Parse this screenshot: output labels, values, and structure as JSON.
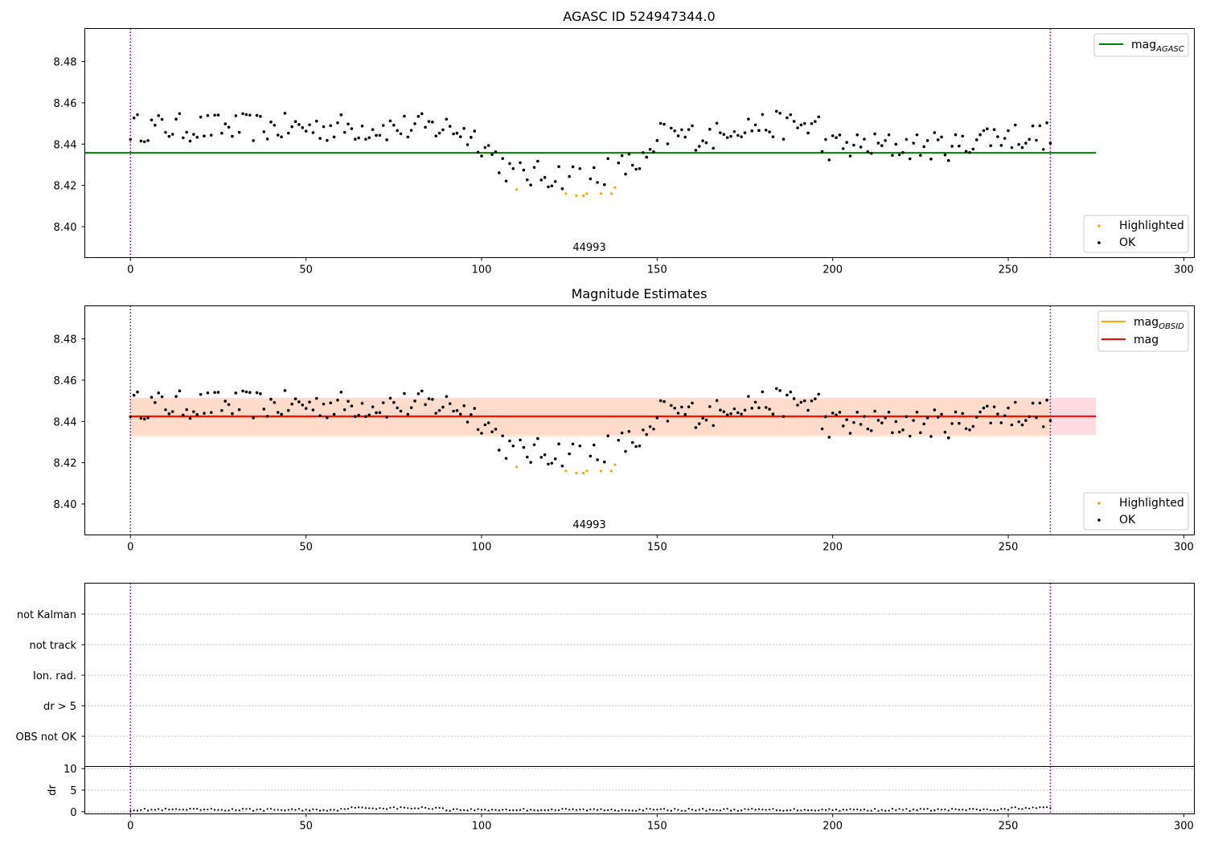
{
  "chart_data": [
    {
      "type": "scatter",
      "title": "AGASC ID 524947344.0",
      "xlim": [
        -13,
        303
      ],
      "ylim": [
        8.385,
        8.496
      ],
      "xticks": [
        0,
        50,
        100,
        150,
        200,
        250,
        300
      ],
      "yticks": [
        8.4,
        8.42,
        8.44,
        8.46,
        8.48
      ],
      "vlines": [
        0,
        262
      ],
      "obsid_label": "44993",
      "hlines": [
        {
          "name": "mag_AGASC",
          "legend_main": "mag",
          "legend_sub": "AGASC",
          "color": "#008000",
          "y": 8.4358,
          "x": [
            -13,
            275
          ]
        }
      ],
      "legend_lines_position": "upper right",
      "legend_points_position": "lower right",
      "series": [
        {
          "name": "Highlighted",
          "color": "#ffa500",
          "x": [
            110,
            124,
            127,
            129,
            130,
            134,
            137,
            138
          ],
          "y": [
            8.418,
            8.416,
            8.415,
            8.415,
            8.416,
            8.416,
            8.416,
            8.419
          ]
        },
        {
          "name": "OK",
          "color": "#000000"
        }
      ]
    },
    {
      "type": "scatter",
      "title": "Magnitude Estimates",
      "xlim": [
        -13,
        303
      ],
      "ylim": [
        8.385,
        8.496
      ],
      "xticks": [
        0,
        50,
        100,
        150,
        200,
        250,
        300
      ],
      "yticks": [
        8.4,
        8.42,
        8.44,
        8.46,
        8.48
      ],
      "vlines": [
        0,
        262
      ],
      "obsid_label": "44993",
      "bands": [
        {
          "color": "#ffc0cb",
          "y": [
            8.4335,
            8.4515
          ],
          "x": [
            0,
            275
          ]
        },
        {
          "color": "#ffdab9",
          "y": [
            8.4325,
            8.451
          ],
          "x": [
            0,
            262
          ]
        }
      ],
      "hlines": [
        {
          "name": "mag_OBSID",
          "legend_main": "mag",
          "legend_sub": "OBSID",
          "color": "#ffa500",
          "y": 8.4423,
          "x": [
            0,
            262
          ]
        },
        {
          "name": "mag",
          "legend_main": "mag",
          "legend_sub": "",
          "color": "#ff0000",
          "y": 8.4425,
          "x": [
            0,
            275
          ]
        }
      ],
      "legend_lines_position": "upper right",
      "legend_points_position": "lower right",
      "series": [
        {
          "name": "Highlighted",
          "color": "#ffa500",
          "x": [
            110,
            124,
            127,
            129,
            130,
            134,
            137,
            138
          ],
          "y": [
            8.418,
            8.416,
            8.415,
            8.415,
            8.416,
            8.416,
            8.416,
            8.419
          ]
        },
        {
          "name": "OK",
          "color": "#000000"
        }
      ]
    },
    {
      "type": "scatter",
      "xlim": [
        -13,
        303
      ],
      "categories": [
        "not Kalman",
        "not track",
        "Ion. rad.",
        "dr > 5",
        "OBS not OK"
      ],
      "vlines": [
        0,
        262
      ],
      "grid": "horizontal dotted"
    },
    {
      "type": "scatter",
      "ylabel": "dr",
      "xlim": [
        -13,
        303
      ],
      "ylim": [
        -0.5,
        10.5
      ],
      "xticks": [
        0,
        50,
        100,
        150,
        200,
        250,
        300
      ],
      "yticks": [
        0,
        5,
        10
      ],
      "vlines": [
        0,
        262
      ],
      "grid": "horizontal dotted",
      "x": [
        0,
        262
      ],
      "y_range": [
        0.1,
        1.1
      ],
      "note": "dr of every sample, roughly 0.2 to 1.0"
    }
  ]
}
